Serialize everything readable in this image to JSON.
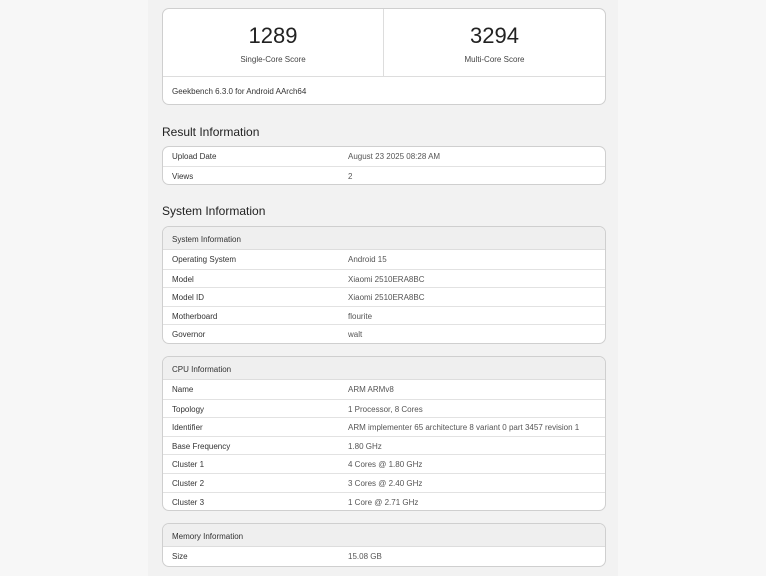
{
  "scores": {
    "single": "1289",
    "single_label": "Single-Core Score",
    "multi": "3294",
    "multi_label": "Multi-Core Score",
    "version": "Geekbench 6.3.0 for Android AArch64"
  },
  "result": {
    "title": "Result Information",
    "rows": [
      [
        "Upload Date",
        "August 23 2025 08:28 AM"
      ],
      [
        "Views",
        "2"
      ]
    ]
  },
  "system": {
    "title": "System Information",
    "header": "System Information",
    "rows": [
      [
        "Operating System",
        "Android 15"
      ],
      [
        "Model",
        "Xiaomi 2510ERA8BC"
      ],
      [
        "Model ID",
        "Xiaomi 2510ERA8BC"
      ],
      [
        "Motherboard",
        "flourite"
      ],
      [
        "Governor",
        "walt"
      ]
    ]
  },
  "cpu": {
    "header": "CPU Information",
    "rows": [
      [
        "Name",
        "ARM ARMv8"
      ],
      [
        "Topology",
        "1 Processor, 8 Cores"
      ],
      [
        "Identifier",
        "ARM implementer 65 architecture 8 variant 0 part 3457 revision 1"
      ],
      [
        "Base Frequency",
        "1.80 GHz"
      ],
      [
        "Cluster 1",
        "4 Cores @ 1.80 GHz"
      ],
      [
        "Cluster 2",
        "3 Cores @ 2.40 GHz"
      ],
      [
        "Cluster 3",
        "1 Core @ 2.71 GHz"
      ]
    ]
  },
  "memory": {
    "header": "Memory Information",
    "rows": [
      [
        "Size",
        "15.08 GB"
      ]
    ]
  }
}
